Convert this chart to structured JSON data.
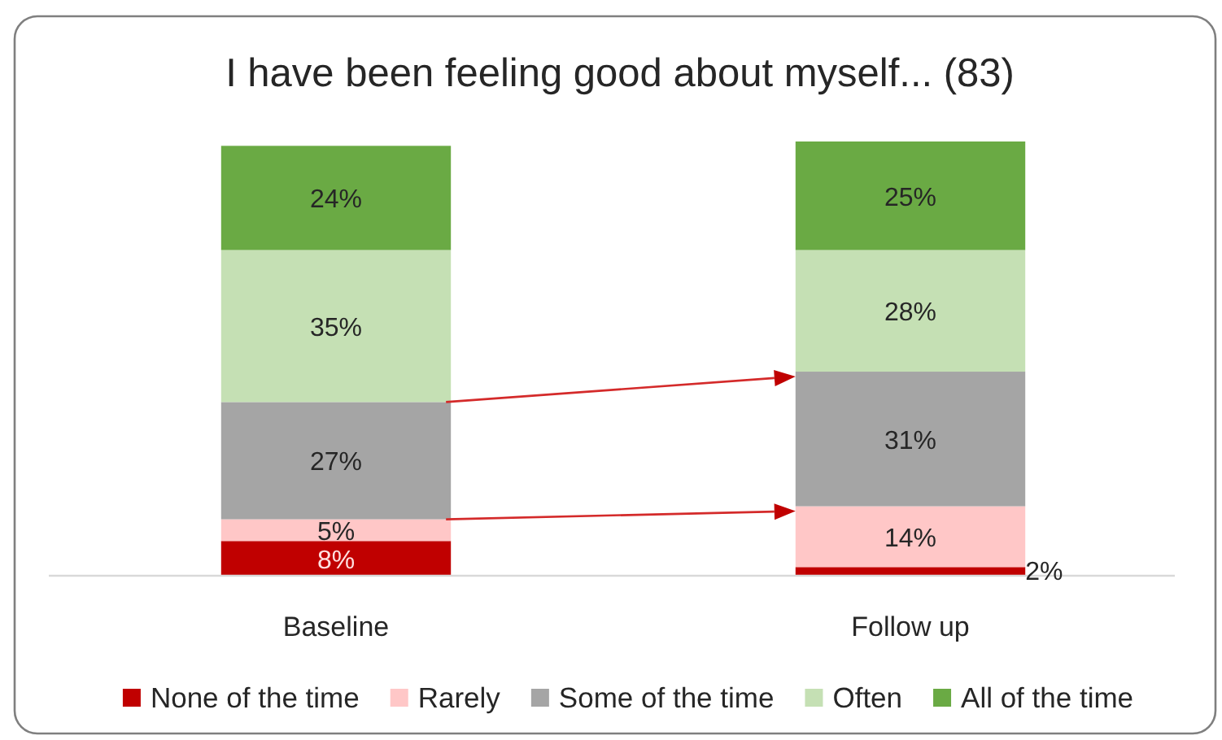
{
  "chart_data": {
    "type": "bar",
    "title": "I have been feeling good about myself... (83)",
    "categories": [
      "Baseline",
      "Follow up"
    ],
    "stacked": true,
    "legend": "bottom",
    "tick_labels": "x",
    "series": [
      {
        "name": "None of the time",
        "color": "#c00000",
        "values": [
          8,
          2
        ],
        "value_labels": [
          "8%",
          "2%"
        ]
      },
      {
        "name": "Rarely",
        "color": "#ffc7c7",
        "values": [
          5,
          14
        ],
        "value_labels": [
          "5%",
          "14%"
        ]
      },
      {
        "name": "Some of the time",
        "color": "#a5a5a5",
        "values": [
          27,
          31
        ],
        "value_labels": [
          "27%",
          "31%"
        ]
      },
      {
        "name": "Often",
        "color": "#c5e0b4",
        "values": [
          35,
          28
        ],
        "value_labels": [
          "35%",
          "28%"
        ]
      },
      {
        "name": "All of the time",
        "color": "#6aaa44",
        "values": [
          24,
          25
        ],
        "value_labels": [
          "24%",
          "25%"
        ]
      }
    ]
  }
}
